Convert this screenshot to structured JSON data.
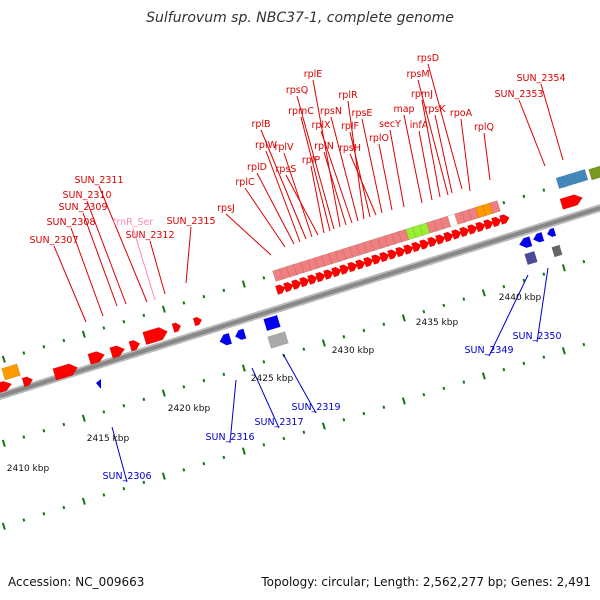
{
  "title": "Sulfurovum sp. NBC37-1, complete genome",
  "footer": {
    "accession": "Accession: NC_009663",
    "summary": "Topology: circular; Length: 2,562,277 bp; Genes: 2,491"
  },
  "colors": {
    "forward_gene": "#ff0000",
    "reverse_gene": "#0000ee",
    "trna": "#ff88bb",
    "ribosomal_block": "#f08080",
    "green_gene": "#99ee33",
    "orange_gene": "#ff9900",
    "teal_gene": "#4488bb",
    "olive_gene": "#779922",
    "gray_gene": "#aaaaaa",
    "tick": "#117711",
    "backbone": "#888888"
  },
  "scale_labels": [
    "2410 kbp",
    "2415 kbp",
    "2420 kbp",
    "2425 kbp",
    "2430 kbp",
    "2435 kbp",
    "2440 kbp"
  ],
  "forward_labels": [
    "SUN_2307",
    "SUN_2308",
    "SUN_2309",
    "SUN_2310",
    "SUN_2311",
    "SUN_2312",
    "SUN_2315",
    "rpsJ",
    "rplC",
    "rplD",
    "rplW",
    "rplB",
    "rplV",
    "rpsS",
    "rplP",
    "rpmC",
    "rpsQ",
    "rplE",
    "rplN",
    "rplX",
    "rpsN",
    "rplR",
    "rplF",
    "rpsH",
    "rpsE",
    "rplO",
    "secY",
    "map",
    "infA",
    "rpmJ",
    "rpsM",
    "rpsK",
    "rpoA",
    "rpsD",
    "rplQ",
    "SUN_2353",
    "SUN_2354"
  ],
  "trna_labels": [
    "trnR_Ser"
  ],
  "reverse_labels": [
    "SUN_2306",
    "SUN_2316",
    "SUN_2317",
    "SUN_2319",
    "SUN_2349",
    "SUN_2350"
  ]
}
